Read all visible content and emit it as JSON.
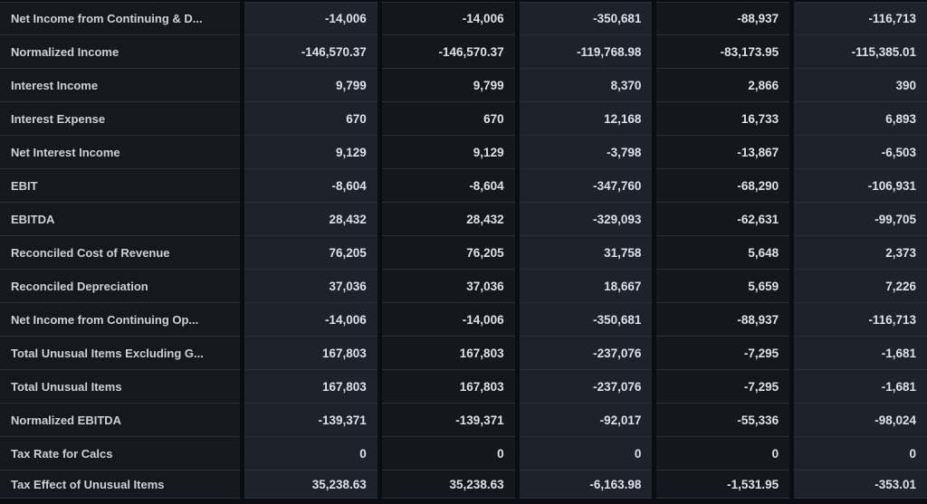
{
  "table": {
    "rows": [
      {
        "label": "Net Income from Continuing & D...",
        "values": [
          "-14,006",
          "-14,006",
          "-350,681",
          "-88,937",
          "-116,713"
        ]
      },
      {
        "label": "Normalized Income",
        "values": [
          "-146,570.37",
          "-146,570.37",
          "-119,768.98",
          "-83,173.95",
          "-115,385.01"
        ]
      },
      {
        "label": "Interest Income",
        "values": [
          "9,799",
          "9,799",
          "8,370",
          "2,866",
          "390"
        ]
      },
      {
        "label": "Interest Expense",
        "values": [
          "670",
          "670",
          "12,168",
          "16,733",
          "6,893"
        ]
      },
      {
        "label": "Net Interest Income",
        "values": [
          "9,129",
          "9,129",
          "-3,798",
          "-13,867",
          "-6,503"
        ]
      },
      {
        "label": "EBIT",
        "values": [
          "-8,604",
          "-8,604",
          "-347,760",
          "-68,290",
          "-106,931"
        ]
      },
      {
        "label": "EBITDA",
        "values": [
          "28,432",
          "28,432",
          "-329,093",
          "-62,631",
          "-99,705"
        ]
      },
      {
        "label": "Reconciled Cost of Revenue",
        "values": [
          "76,205",
          "76,205",
          "31,758",
          "5,648",
          "2,373"
        ]
      },
      {
        "label": "Reconciled Depreciation",
        "values": [
          "37,036",
          "37,036",
          "18,667",
          "5,659",
          "7,226"
        ]
      },
      {
        "label": "Net Income from Continuing Op...",
        "values": [
          "-14,006",
          "-14,006",
          "-350,681",
          "-88,937",
          "-116,713"
        ]
      },
      {
        "label": "Total Unusual Items Excluding G...",
        "values": [
          "167,803",
          "167,803",
          "-237,076",
          "-7,295",
          "-1,681"
        ]
      },
      {
        "label": "Total Unusual Items",
        "values": [
          "167,803",
          "167,803",
          "-237,076",
          "-7,295",
          "-1,681"
        ]
      },
      {
        "label": "Normalized EBITDA",
        "values": [
          "-139,371",
          "-139,371",
          "-92,017",
          "-55,336",
          "-98,024"
        ]
      },
      {
        "label": "Tax Rate for Calcs",
        "values": [
          "0",
          "0",
          "0",
          "0",
          "0"
        ]
      },
      {
        "label": "Tax Effect of Unusual Items",
        "values": [
          "35,238.63",
          "35,238.63",
          "-6,163.98",
          "-1,531.95",
          "-353.01"
        ]
      }
    ]
  },
  "colors": {
    "bg_gap": "#0b0d11",
    "col_light": "#1e222b",
    "col_dark": "#14171d",
    "label_col": "#15181e",
    "divider": "#2a2f38",
    "label_text": "#cdd1d7",
    "value_text": "#dde0e5"
  }
}
